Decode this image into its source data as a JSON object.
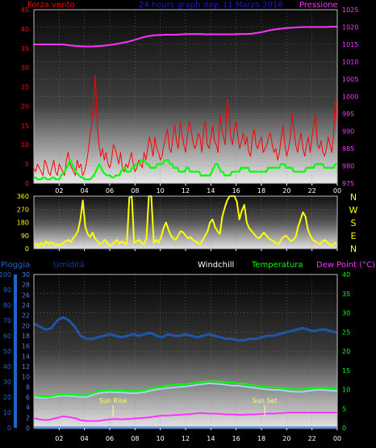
{
  "colors": {
    "wind": "#ff0000",
    "avg_wind": "#00ff00",
    "pressure": "#ff33ff",
    "direction": "#ffff00",
    "humidity": "#1e56a8",
    "temperature": "#00ff00",
    "windchill": "#ffffff",
    "dew_point": "#ff33ff",
    "rain": "#1e64c8",
    "title": "#1a1acd",
    "rain_axis": "#1e64c8",
    "hum_axis": "#5080d0",
    "temp_axis": "#00ff00"
  },
  "chart_data": [
    {
      "type": "line",
      "title": "24 hours graph day: 11 Marzo 2016",
      "left_axis_label": "Forza vento",
      "right_axis_label": "Pressione",
      "x_ticks": [
        "02",
        "04",
        "06",
        "08",
        "10",
        "12",
        "14",
        "16",
        "18",
        "20",
        "22",
        "00"
      ],
      "y_left_ticks": [
        "0",
        "5",
        "10",
        "15",
        "20",
        "25",
        "30",
        "35",
        "40",
        "45"
      ],
      "y_left_range": [
        0,
        45
      ],
      "y_right_ticks": [
        "975",
        "980",
        "985",
        "990",
        "995",
        "1000",
        "1005",
        "1010",
        "1015",
        "1020",
        "1025"
      ],
      "y_right_range": [
        975,
        1025
      ],
      "series": [
        {
          "name": "Forza vento",
          "axis": "left",
          "values": [
            4,
            3,
            5,
            4,
            3,
            2,
            6,
            5,
            3,
            2,
            4,
            6,
            3,
            2,
            5,
            4,
            3,
            2,
            6,
            8,
            5,
            4,
            3,
            2,
            6,
            4,
            5,
            2,
            3,
            5,
            8,
            12,
            15,
            22,
            28,
            16,
            10,
            7,
            9,
            6,
            8,
            5,
            4,
            6,
            10,
            9,
            7,
            5,
            8,
            4,
            3,
            5,
            4,
            6,
            8,
            5,
            3,
            4,
            6,
            5,
            4,
            8,
            6,
            9,
            12,
            10,
            7,
            12,
            9,
            8,
            6,
            7,
            10,
            12,
            14,
            9,
            8,
            12,
            15,
            11,
            9,
            16,
            13,
            10,
            8,
            12,
            16,
            14,
            11,
            9,
            10,
            13,
            12,
            8,
            14,
            16,
            10,
            9,
            12,
            15,
            11,
            10,
            8,
            18,
            14,
            12,
            10,
            22,
            18,
            12,
            10,
            14,
            16,
            12,
            9,
            11,
            13,
            10,
            12,
            8,
            7,
            12,
            14,
            10,
            9,
            11,
            12,
            8,
            9,
            10,
            12,
            13,
            10,
            8,
            9,
            6,
            8,
            12,
            15,
            10,
            7,
            9,
            12,
            18,
            14,
            10,
            8,
            11,
            13,
            9,
            7,
            10,
            12,
            8,
            12,
            15,
            18,
            10,
            9,
            11,
            8,
            7,
            9,
            12,
            10,
            8,
            13,
            22,
            15
          ]
        },
        {
          "name": "avg",
          "axis": "left",
          "values": [
            1.5,
            1.5,
            1,
            1,
            1,
            1.5,
            1.5,
            1,
            1,
            1,
            1.5,
            1.5,
            1,
            1,
            1,
            2,
            2.5,
            3,
            4,
            5,
            6,
            5,
            4,
            3,
            2.5,
            2,
            1.5,
            1.5,
            1,
            1,
            1,
            1,
            1.5,
            2,
            3,
            4,
            5,
            4,
            3,
            2.5,
            2,
            2,
            2,
            1.5,
            1.5,
            2,
            2,
            2,
            3,
            4,
            4,
            3,
            3,
            3,
            4,
            4,
            5,
            5,
            5,
            6,
            6,
            6,
            5,
            5,
            4,
            4,
            4,
            4,
            5,
            5,
            5,
            5,
            6,
            6,
            6,
            5,
            5,
            4,
            4,
            4,
            3,
            3,
            3,
            3,
            4,
            4,
            3,
            3,
            3,
            3,
            3,
            3,
            2,
            2,
            2,
            2,
            2,
            2,
            3,
            4,
            5,
            5,
            4,
            3,
            3,
            2,
            2,
            2,
            2,
            3,
            3,
            3,
            3,
            3,
            4,
            4,
            4,
            4,
            4,
            3,
            3,
            3,
            3,
            3,
            3,
            3,
            3,
            3,
            3,
            4,
            4,
            4,
            4,
            4,
            4,
            4,
            5,
            5,
            5,
            4,
            4,
            4,
            4,
            3,
            3,
            3,
            3,
            3,
            3,
            3,
            4,
            4,
            4,
            4,
            4,
            5,
            5,
            5,
            5,
            5,
            4,
            4,
            4,
            4,
            4,
            4,
            5,
            5
          ]
        },
        {
          "name": "Pressione",
          "axis": "right",
          "values": [
            1015,
            1015,
            1015,
            1015,
            1015,
            1015,
            1014.8,
            1014.6,
            1014.5,
            1014.4,
            1014.4,
            1014.5,
            1014.6,
            1014.8,
            1015,
            1015.3,
            1015.6,
            1016,
            1016.5,
            1017,
            1017.4,
            1017.6,
            1017.7,
            1017.8,
            1017.8,
            1017.8,
            1017.9,
            1018,
            1018,
            1018,
            1017.9,
            1017.9,
            1017.9,
            1017.9,
            1017.9,
            1017.9,
            1018,
            1018,
            1018.1,
            1018.3,
            1018.6,
            1019,
            1019.3,
            1019.5,
            1019.7,
            1019.8,
            1019.9,
            1020,
            1020,
            1020,
            1020,
            1020,
            1020.1,
            1020.1
          ]
        }
      ]
    },
    {
      "type": "scatter",
      "y_ticks": [
        "0",
        "90",
        "180",
        "270",
        "360"
      ],
      "y_range": [
        0,
        360
      ],
      "x_ticks": [
        "02",
        "04",
        "06",
        "08",
        "10",
        "12",
        "14",
        "16",
        "18",
        "20",
        "22",
        "00"
      ],
      "compass_labels": [
        "N",
        "W",
        "S",
        "E",
        "N"
      ],
      "series": [
        {
          "name": "direction",
          "values": [
            20,
            35,
            15,
            40,
            25,
            50,
            30,
            45,
            35,
            20,
            30,
            25,
            40,
            50,
            60,
            45,
            70,
            90,
            120,
            200,
            330,
            150,
            100,
            80,
            110,
            70,
            50,
            30,
            40,
            60,
            40,
            20,
            30,
            45,
            60,
            35,
            50,
            40,
            30,
            350,
            360,
            40,
            50,
            60,
            40,
            30,
            70,
            360,
            360,
            40,
            60,
            40,
            80,
            140,
            180,
            130,
            90,
            70,
            60,
            90,
            120,
            110,
            90,
            70,
            80,
            60,
            50,
            40,
            30,
            60,
            90,
            120,
            180,
            200,
            150,
            120,
            100,
            220,
            280,
            330,
            360,
            360,
            360,
            320,
            200,
            260,
            300,
            180,
            140,
            120,
            100,
            80,
            70,
            90,
            110,
            90,
            70,
            60,
            50,
            40,
            30,
            60,
            80,
            90,
            70,
            50,
            60,
            80,
            150,
            200,
            250,
            220,
            130,
            90,
            60,
            50,
            40,
            30,
            50,
            60,
            40,
            30,
            20,
            40,
            30
          ]
        }
      ]
    },
    {
      "type": "line",
      "header_labels": {
        "rain": "Pioggia",
        "humidity": "Umidità",
        "windchill": "Windchill",
        "temperature": "Temperatura",
        "dew_point": "Dew Point (°C)"
      },
      "y_rain_ticks": [
        "0",
        "10",
        "20",
        "30",
        "40",
        "50",
        "60",
        "70",
        "80",
        "90",
        "100"
      ],
      "y_rain_range": [
        0,
        100
      ],
      "y_hum_ticks": [
        "0",
        "2",
        "4",
        "6",
        "8",
        "10",
        "12",
        "14",
        "16",
        "18",
        "20",
        "22",
        "24",
        "26",
        "28",
        "30"
      ],
      "y_hum_range": [
        0,
        30
      ],
      "y_temp_ticks": [
        "0",
        "5",
        "10",
        "15",
        "20",
        "25",
        "30",
        "35",
        "40"
      ],
      "y_temp_range": [
        0,
        40
      ],
      "x_ticks": [
        "02",
        "04",
        "06",
        "08",
        "10",
        "12",
        "14",
        "16",
        "18",
        "20",
        "22",
        "00"
      ],
      "annotations": [
        "Sun Rise",
        "Sun Set"
      ],
      "series": [
        {
          "name": "Umidità",
          "axis": "rain",
          "values": [
            68,
            66,
            64,
            65,
            70,
            72,
            70,
            66,
            60,
            58,
            58,
            59,
            60,
            61,
            60,
            59,
            60,
            61,
            60,
            61,
            62,
            60,
            59,
            61,
            60,
            60,
            61,
            60,
            59,
            60,
            61,
            60,
            59,
            58,
            58,
            57,
            57,
            58,
            58,
            59,
            60,
            60,
            61,
            62,
            63,
            64,
            65,
            64,
            63,
            64,
            64,
            63,
            62
          ]
        },
        {
          "name": "Temperatura",
          "axis": "temp",
          "values": [
            8.5,
            8.3,
            8.2,
            8.3,
            8.6,
            8.8,
            8.8,
            8.6,
            8.5,
            8.5,
            9,
            9.5,
            9.8,
            9.8,
            9.8,
            9.7,
            9.6,
            9.5,
            9.6,
            9.8,
            10.2,
            10.5,
            10.8,
            11,
            11.2,
            11.3,
            11.4,
            11.6,
            11.8,
            12,
            12.2,
            12.2,
            12,
            11.9,
            11.8,
            11.6,
            11.5,
            11.3,
            11,
            10.8,
            10.6,
            10.5,
            10.5,
            10.3,
            10.2,
            10,
            10,
            10.2,
            10.4,
            10.5,
            10.4,
            10.3,
            10.2
          ]
        },
        {
          "name": "Windchill",
          "axis": "temp",
          "values": [
            8,
            7.8,
            7.8,
            8,
            8.2,
            8.4,
            8.3,
            8.2,
            8.1,
            8,
            8.5,
            9,
            9.2,
            9.3,
            9.2,
            9.2,
            9.1,
            9,
            9.1,
            9.3,
            9.7,
            10,
            10.2,
            10.4,
            10.5,
            10.7,
            10.8,
            11,
            11.2,
            11.4,
            11.6,
            11.5,
            11.4,
            11.2,
            11,
            11,
            10.8,
            10.6,
            10.4,
            10.2,
            10,
            9.9,
            9.9,
            9.7,
            9.5,
            9.4,
            9.4,
            9.6,
            9.8,
            9.9,
            9.8,
            9.7,
            9.6
          ]
        },
        {
          "name": "Dew Point",
          "axis": "temp",
          "values": [
            2.5,
            2.2,
            2,
            2.2,
            2.6,
            3,
            2.8,
            2.5,
            2,
            1.8,
            1.8,
            1.8,
            2,
            2.2,
            2.3,
            2.2,
            2.3,
            2.4,
            2.5,
            2.6,
            2.8,
            3,
            3.2,
            3.2,
            3.3,
            3.4,
            3.5,
            3.6,
            3.8,
            3.8,
            3.7,
            3.7,
            3.6,
            3.5,
            3.5,
            3.4,
            3.4,
            3.5,
            3.5,
            3.6,
            3.7,
            3.7,
            3.8,
            3.9,
            4,
            4,
            4,
            4,
            4,
            4,
            4,
            4,
            4
          ]
        },
        {
          "name": "Pioggia",
          "axis": "rain",
          "values": [
            0,
            0,
            0,
            0,
            0,
            0,
            0,
            0,
            0,
            0,
            0,
            0
          ]
        }
      ]
    }
  ]
}
